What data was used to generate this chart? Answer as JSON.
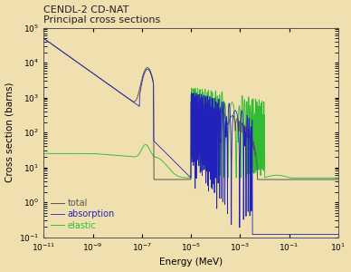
{
  "title_line1": "CENDL-2 CD-NAT",
  "title_line2": "Principal cross sections",
  "xlabel": "Energy (MeV)",
  "ylabel": "Cross section (barns)",
  "xlim_log": [
    -11,
    1
  ],
  "ylim_log": [
    -1,
    5
  ],
  "background_color": "#f0e0b0",
  "line_colors": {
    "total": "#555555",
    "absorption": "#2222bb",
    "elastic": "#33bb33"
  },
  "legend_labels": [
    "total",
    "absorption",
    "elastic"
  ],
  "legend_text_colors": [
    "#555555",
    "#2222bb",
    "#33bb33"
  ]
}
